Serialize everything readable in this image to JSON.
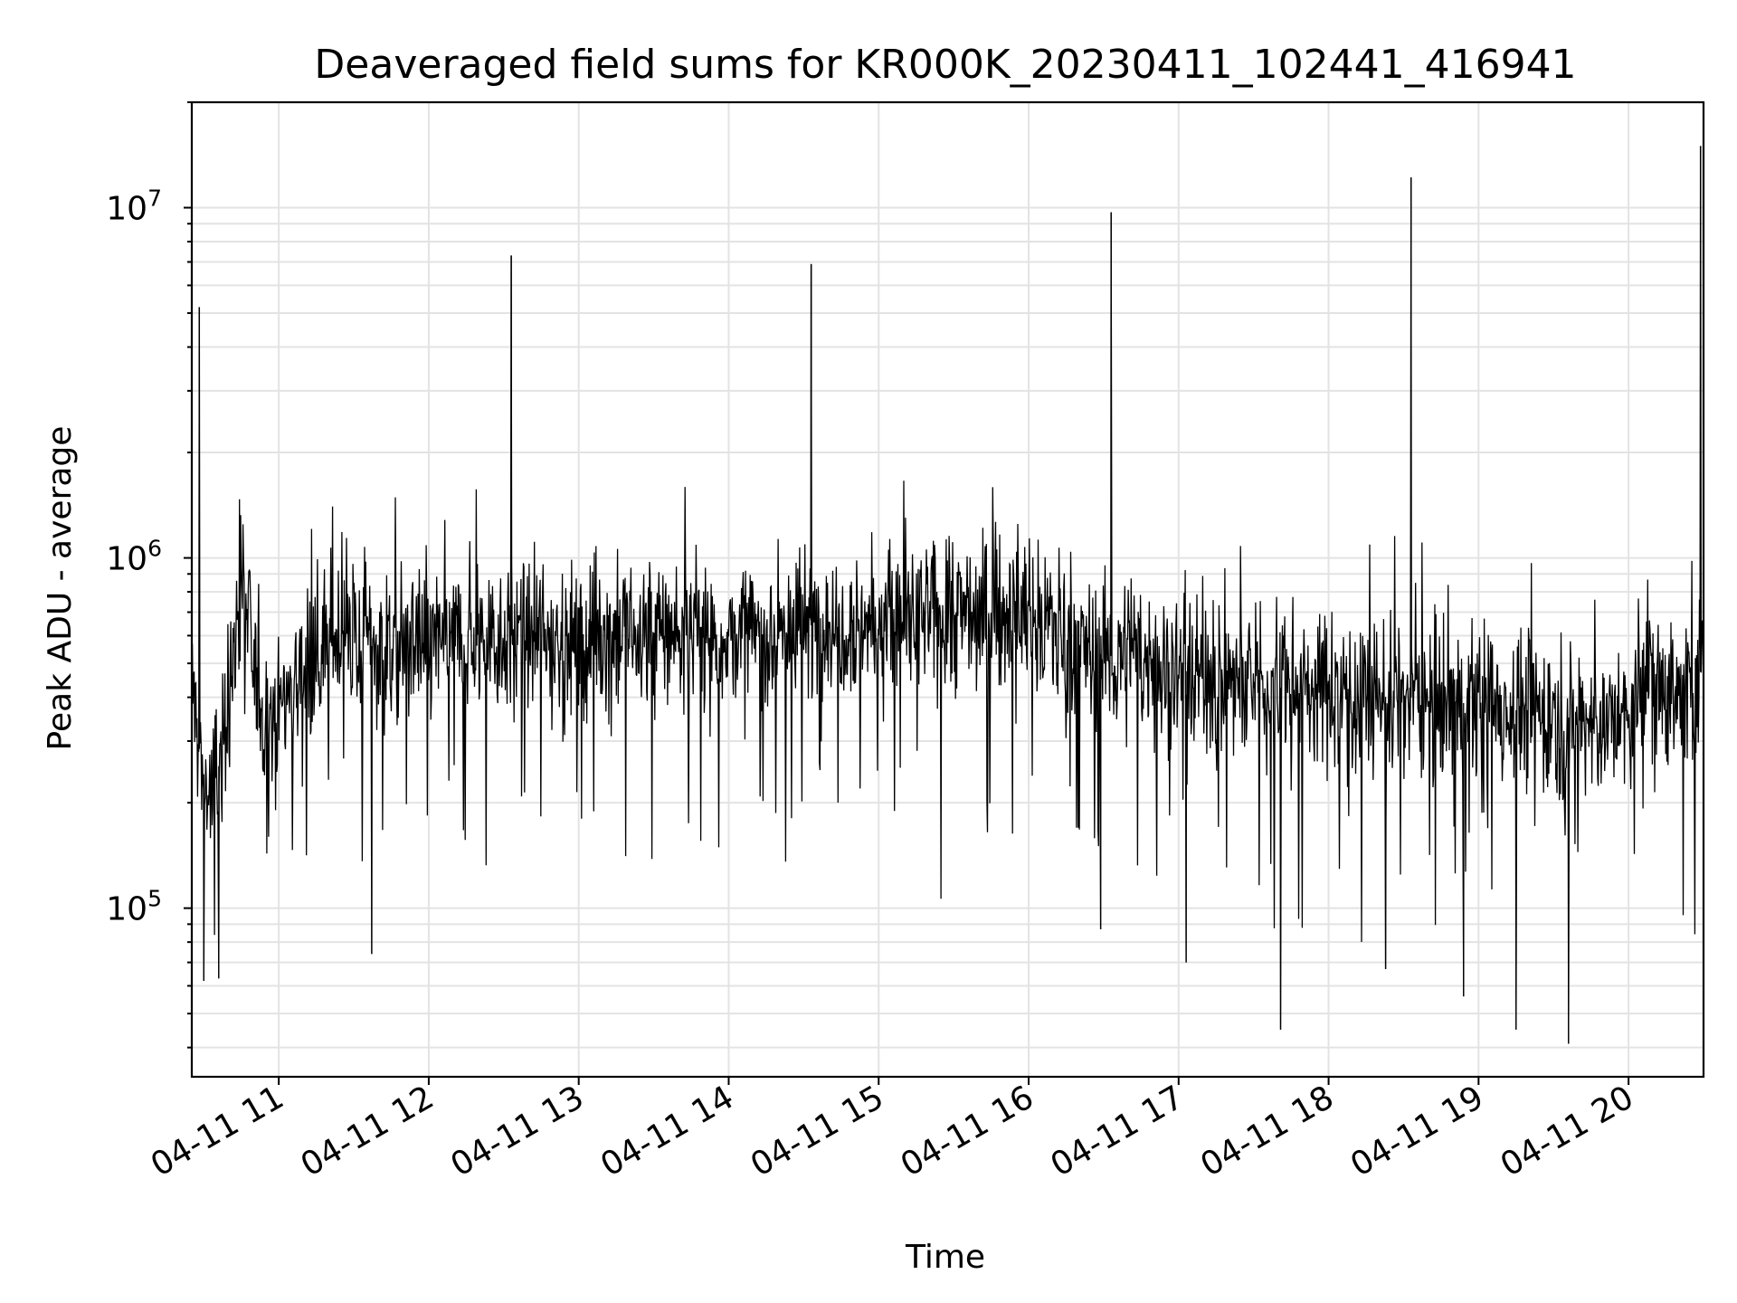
{
  "chart_data": {
    "type": "line",
    "title": "Deaveraged field sums for KR000K_20230411_102441_416941",
    "xlabel": "Time",
    "ylabel": "Peak ADU - average",
    "yscale": "log",
    "xlim_hours": [
      10.42,
      20.5
    ],
    "ylim": [
      33000,
      20000000
    ],
    "grid": true,
    "line_color": "#000000",
    "x_tick_labels": [
      "04-11 11",
      "04-11 12",
      "04-11 13",
      "04-11 14",
      "04-11 15",
      "04-11 16",
      "04-11 17",
      "04-11 18",
      "04-11 19",
      "04-11 20"
    ],
    "x_tick_hours": [
      11,
      12,
      13,
      14,
      15,
      16,
      17,
      18,
      19,
      20
    ],
    "y_tick_values": [
      100000,
      1000000,
      10000000
    ],
    "y_tick_labels": [
      {
        "base": "10",
        "exp": "5"
      },
      {
        "base": "10",
        "exp": "6"
      },
      {
        "base": "10",
        "exp": "7"
      }
    ],
    "series": [
      {
        "x_hours": [
          10.42,
          10.48,
          10.55,
          10.62,
          10.68,
          10.75,
          10.82,
          10.9,
          11.0,
          11.1,
          11.2,
          11.3,
          11.4,
          11.5,
          11.6,
          11.7,
          11.8,
          11.9,
          12.0,
          12.2,
          12.4,
          12.6,
          12.8,
          13.0,
          13.2,
          13.4,
          13.6,
          13.8,
          14.0,
          14.2,
          14.4,
          14.6,
          14.8,
          15.0,
          15.2,
          15.4,
          15.6,
          15.8,
          16.0,
          16.2,
          16.4,
          16.6,
          16.8,
          17.0,
          17.2,
          17.4,
          17.6,
          17.8,
          18.0,
          18.2,
          18.4,
          18.6,
          18.8,
          19.0,
          19.2,
          19.4,
          19.6,
          19.8,
          20.0,
          20.15,
          20.3,
          20.45,
          20.5
        ],
        "baseline": [
          450000,
          260000,
          200000,
          280000,
          420000,
          950000,
          520000,
          340000,
          380000,
          440000,
          500000,
          550000,
          600000,
          580000,
          560000,
          560000,
          550000,
          570000,
          580000,
          580000,
          600000,
          600000,
          580000,
          570000,
          590000,
          600000,
          620000,
          600000,
          590000,
          600000,
          620000,
          650000,
          660000,
          640000,
          650000,
          680000,
          700000,
          690000,
          700000,
          620000,
          540000,
          520000,
          500000,
          480000,
          460000,
          440000,
          430000,
          420000,
          420000,
          410000,
          400000,
          400000,
          390000,
          380000,
          370000,
          360000,
          350000,
          340000,
          330000,
          480000,
          400000,
          410000,
          520000
        ],
        "spikes": [
          {
            "x_hour": 10.47,
            "y": 5200000
          },
          {
            "x_hour": 12.55,
            "y": 7300000
          },
          {
            "x_hour": 14.55,
            "y": 6900000
          },
          {
            "x_hour": 16.55,
            "y": 9700000
          },
          {
            "x_hour": 18.55,
            "y": 12200000
          },
          {
            "x_hour": 20.48,
            "y": 15000000
          }
        ],
        "dips": [
          {
            "x_hour": 10.5,
            "y": 62000
          },
          {
            "x_hour": 10.6,
            "y": 63000
          },
          {
            "x_hour": 11.62,
            "y": 74000
          },
          {
            "x_hour": 16.48,
            "y": 87000
          },
          {
            "x_hour": 17.05,
            "y": 70000
          },
          {
            "x_hour": 17.68,
            "y": 45000
          },
          {
            "x_hour": 18.38,
            "y": 67000
          },
          {
            "x_hour": 18.9,
            "y": 56000
          },
          {
            "x_hour": 19.25,
            "y": 45000
          },
          {
            "x_hour": 19.6,
            "y": 41000
          }
        ]
      }
    ]
  }
}
